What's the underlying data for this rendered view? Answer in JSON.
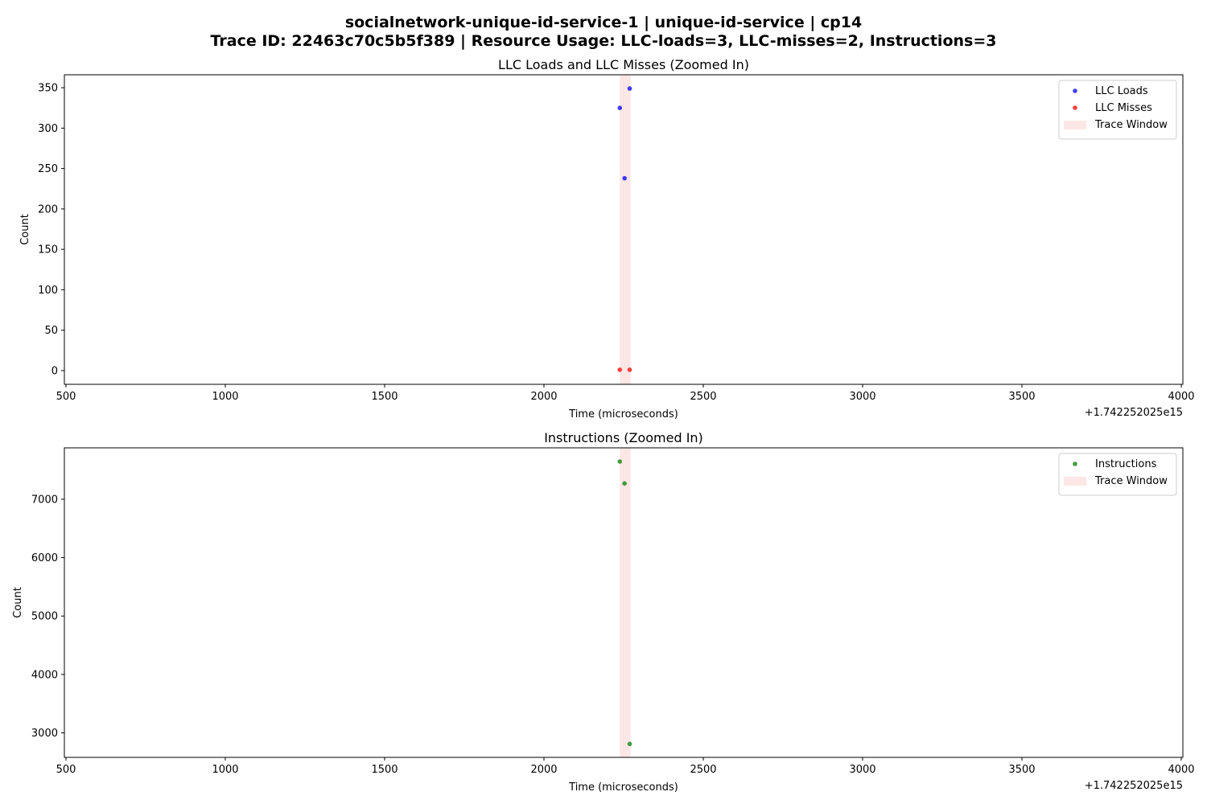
{
  "figure": {
    "title_line1": "socialnetwork-unique-id-service-1 | unique-id-service | cp14",
    "title_line2": "Trace ID: 22463c70c5b5f389 | Resource Usage: LLC-loads=3, LLC-misses=2, Instructions=3"
  },
  "colors": {
    "llc_loads": "#0000ff",
    "llc_misses": "#ff0000",
    "instructions": "#008000",
    "trace_window": "#fde6e6"
  },
  "chart_data": [
    {
      "type": "scatter",
      "title": "LLC Loads and LLC Misses (Zoomed In)",
      "xlabel": "Time (microseconds)",
      "ylabel": "Count",
      "x_offset_label": "+1.742252025e15",
      "xlim": [
        495,
        4005
      ],
      "ylim": [
        -17,
        366
      ],
      "xticks": [
        500,
        1000,
        1500,
        2000,
        2500,
        3000,
        3500,
        4000
      ],
      "yticks": [
        0,
        50,
        100,
        150,
        200,
        250,
        300,
        350
      ],
      "trace_window": {
        "x_start": 2238,
        "x_end": 2272,
        "label": "Trace Window"
      },
      "legend_position": "top-right",
      "series": [
        {
          "name": "LLC Loads",
          "color_key": "llc_loads",
          "points": [
            {
              "x": 2238,
              "y": 325
            },
            {
              "x": 2253,
              "y": 238
            },
            {
              "x": 2269,
              "y": 349
            }
          ]
        },
        {
          "name": "LLC Misses",
          "color_key": "llc_misses",
          "points": [
            {
              "x": 2238,
              "y": 1
            },
            {
              "x": 2269,
              "y": 1
            }
          ]
        }
      ]
    },
    {
      "type": "scatter",
      "title": "Instructions (Zoomed In)",
      "xlabel": "Time (microseconds)",
      "ylabel": "Count",
      "x_offset_label": "+1.742252025e15",
      "xlim": [
        495,
        4005
      ],
      "ylim": [
        2580,
        7880
      ],
      "xticks": [
        500,
        1000,
        1500,
        2000,
        2500,
        3000,
        3500,
        4000
      ],
      "yticks": [
        3000,
        4000,
        5000,
        6000,
        7000
      ],
      "trace_window": {
        "x_start": 2238,
        "x_end": 2272,
        "label": "Trace Window"
      },
      "legend_position": "top-right",
      "series": [
        {
          "name": "Instructions",
          "color_key": "instructions",
          "points": [
            {
              "x": 2238,
              "y": 7645
            },
            {
              "x": 2253,
              "y": 7270
            },
            {
              "x": 2269,
              "y": 2810
            }
          ]
        }
      ]
    }
  ]
}
